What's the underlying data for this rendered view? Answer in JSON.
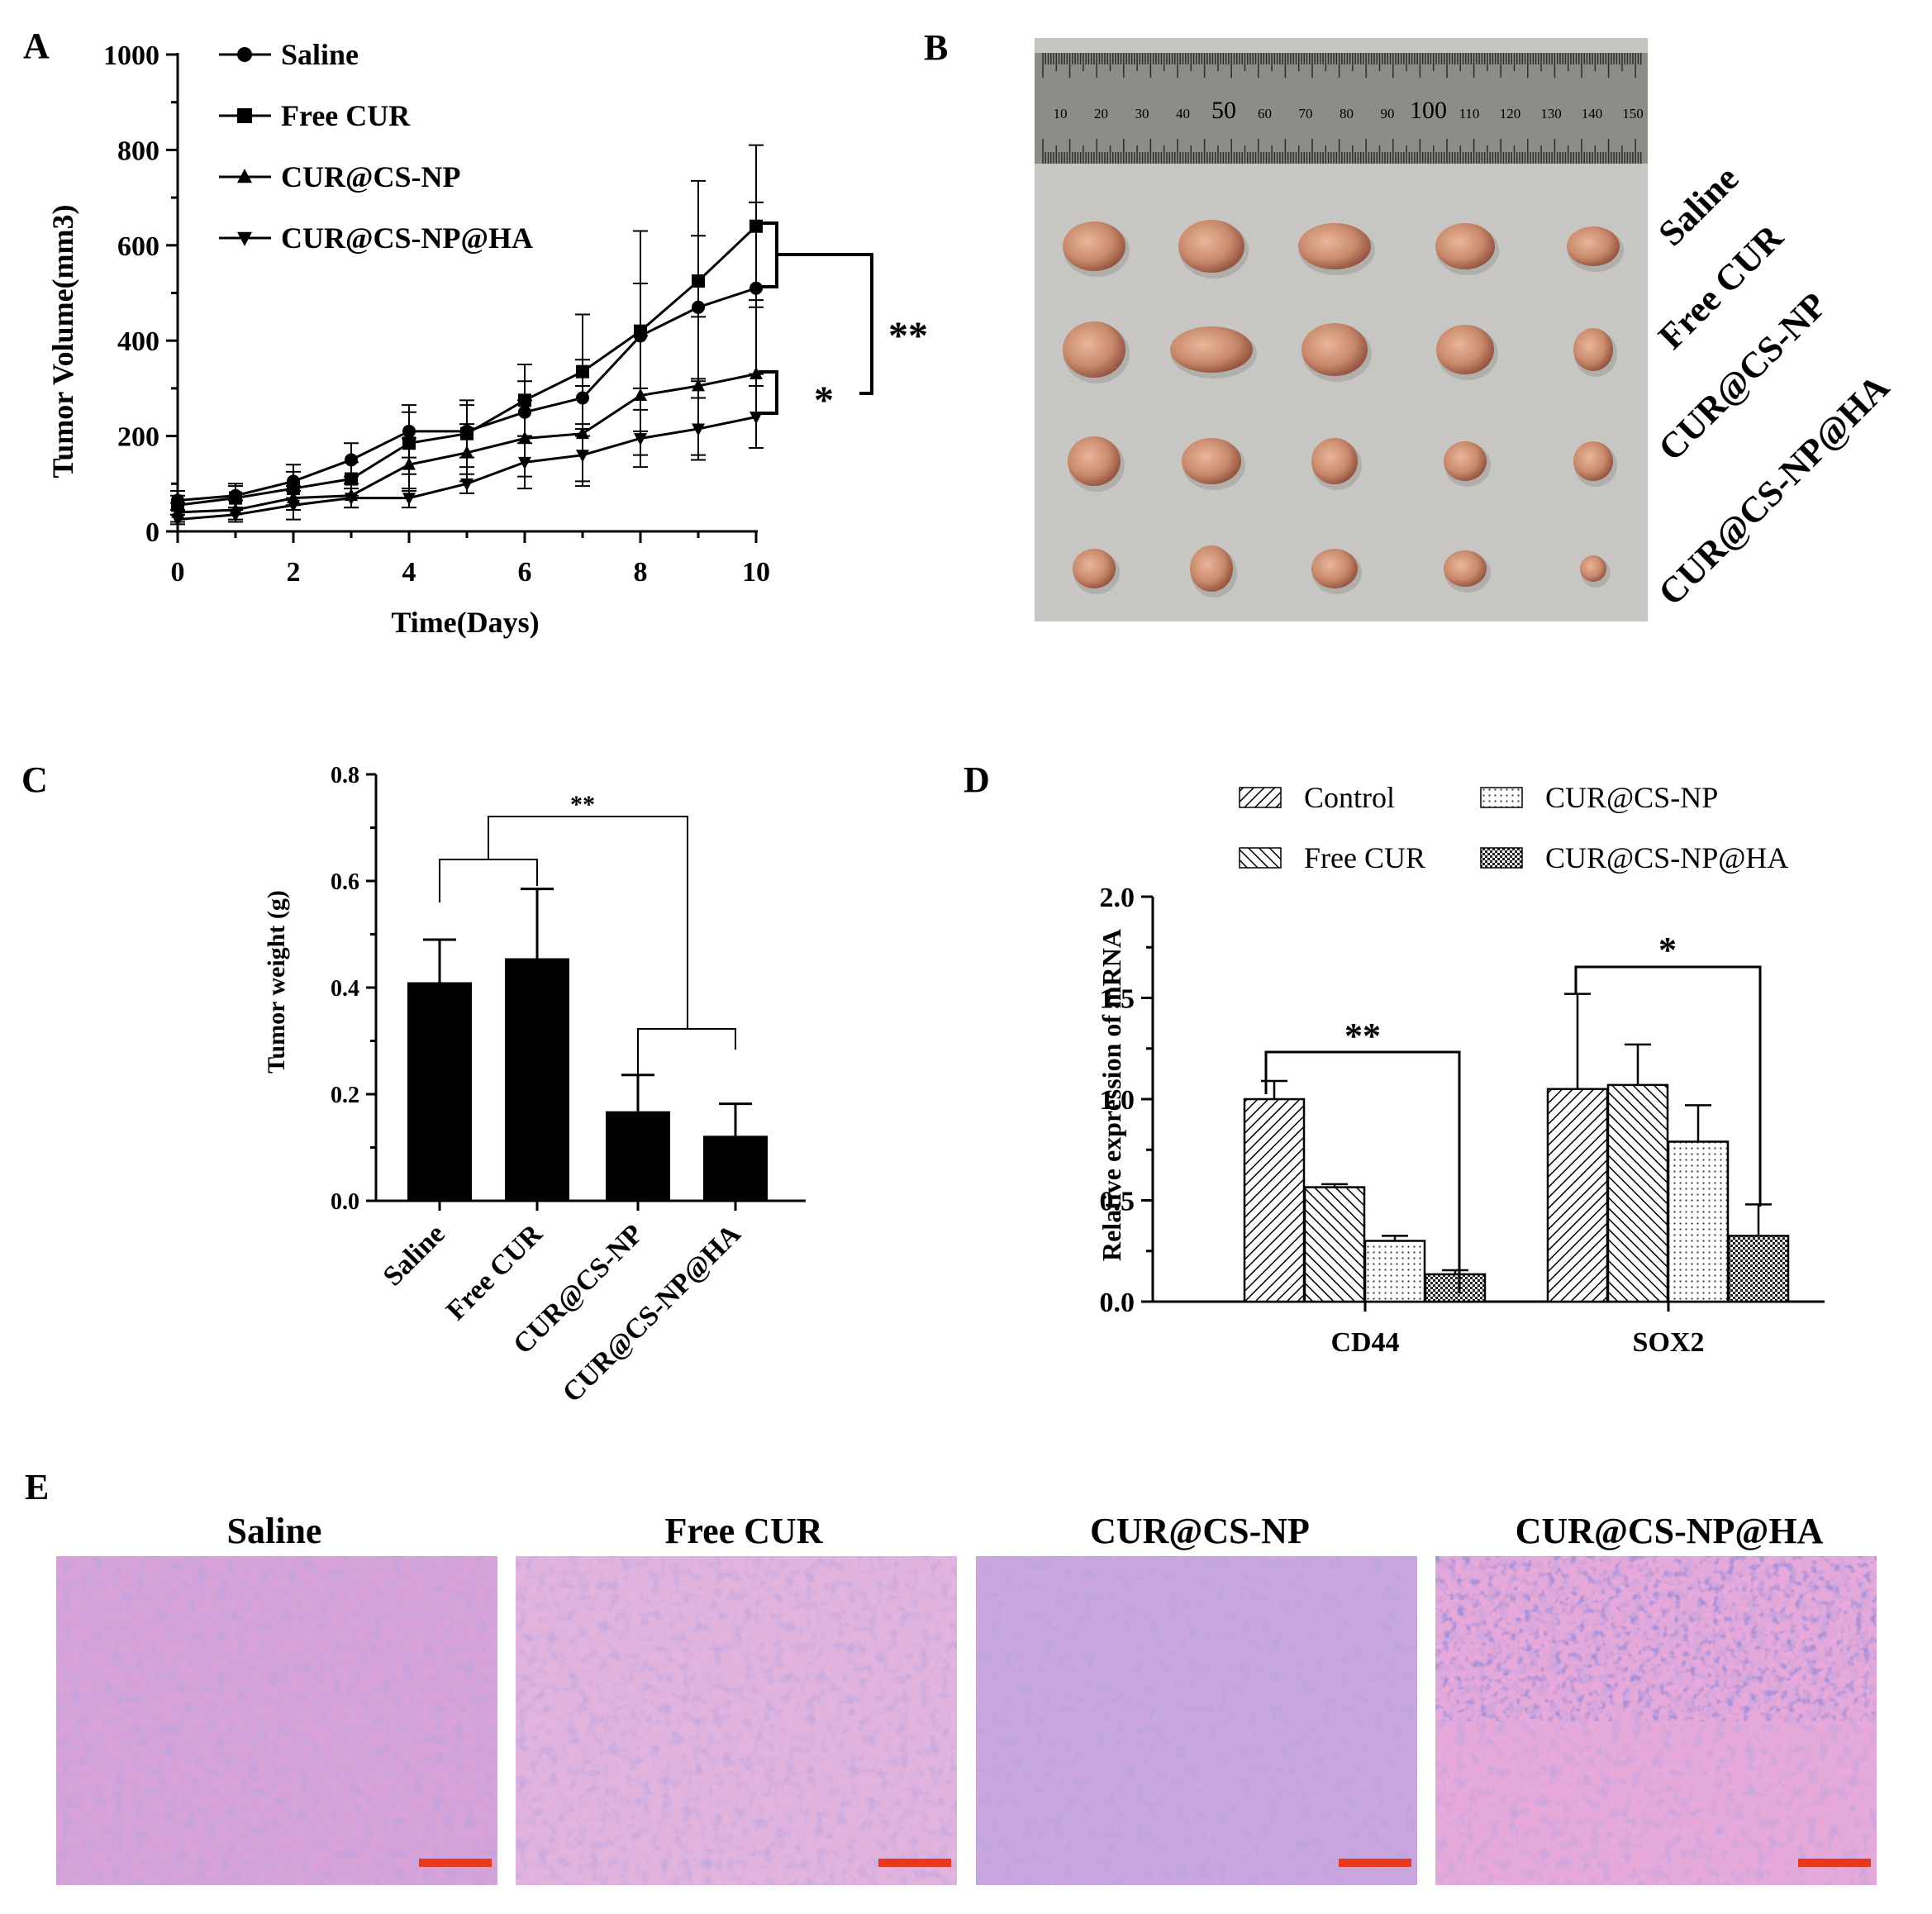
{
  "panel_letters": [
    "A",
    "B",
    "C",
    "D",
    "E"
  ],
  "panel_b": {
    "ruler_numbers": [
      "10",
      "20",
      "30",
      "40",
      "50",
      "60",
      "70",
      "80",
      "90",
      "100",
      "110",
      "120",
      "130",
      "140",
      "150"
    ],
    "row_labels": [
      "Saline",
      "Free CUR",
      "CUR@CS-NP",
      "CUR@CS-NP@HA"
    ]
  },
  "panel_e": {
    "titles": [
      "Saline",
      "Free CUR",
      "CUR@CS-NP",
      "CUR@CS-NP@HA"
    ]
  },
  "chart_data": [
    {
      "panel": "A",
      "type": "line",
      "xlabel": "Time(Days)",
      "ylabel": "Tumor Volume(mm3)",
      "xlim": [
        0,
        10
      ],
      "ylim": [
        0,
        1000
      ],
      "xticks": [
        0,
        2,
        4,
        6,
        8,
        10
      ],
      "yticks": [
        0,
        200,
        400,
        600,
        800,
        1000
      ],
      "x": [
        0,
        1,
        2,
        3,
        4,
        5,
        6,
        7,
        8,
        9,
        10
      ],
      "legend_position": "top-left",
      "series": [
        {
          "name": "Saline",
          "marker": "circle",
          "values": [
            65,
            75,
            105,
            150,
            210,
            210,
            250,
            280,
            410,
            470,
            510
          ],
          "errors": [
            20,
            25,
            35,
            35,
            55,
            55,
            65,
            80,
            110,
            150,
            180
          ]
        },
        {
          "name": "Free CUR",
          "marker": "square",
          "values": [
            55,
            70,
            90,
            110,
            185,
            205,
            275,
            335,
            420,
            525,
            640
          ],
          "errors": [
            20,
            25,
            35,
            35,
            65,
            70,
            75,
            120,
            210,
            210,
            170
          ]
        },
        {
          "name": "CUR@CS-NP",
          "marker": "triangle-up",
          "values": [
            40,
            45,
            70,
            75,
            140,
            165,
            195,
            205,
            285,
            305,
            330
          ],
          "errors": [
            20,
            20,
            25,
            25,
            55,
            60,
            80,
            100,
            125,
            145,
            155
          ]
        },
        {
          "name": "CUR@CS-NP@HA",
          "marker": "triangle-down",
          "values": [
            25,
            35,
            55,
            70,
            70,
            100,
            145,
            160,
            195,
            215,
            240
          ],
          "errors": [
            10,
            15,
            30,
            20,
            20,
            20,
            55,
            65,
            60,
            65,
            65
          ]
        }
      ],
      "annotations": [
        "**",
        "*"
      ]
    },
    {
      "panel": "C",
      "type": "bar",
      "ylabel": "Tumor weight  (g)",
      "categories": [
        "Saline",
        "Free CUR",
        "CUR@CS-NP",
        "CUR@CS-NP@HA"
      ],
      "values": [
        0.41,
        0.455,
        0.168,
        0.122
      ],
      "errors": [
        0.08,
        0.13,
        0.068,
        0.06
      ],
      "ylim": [
        0,
        0.8
      ],
      "yticks": [
        "0.0",
        "0.2",
        "0.4",
        "0.6",
        "0.8"
      ],
      "annotations": [
        "**"
      ]
    },
    {
      "panel": "D",
      "type": "bar",
      "ylabel": "Relative expression of mRNA",
      "categories": [
        "CD44",
        "SOX2"
      ],
      "ylim": [
        0,
        2.0
      ],
      "yticks": [
        "0.0",
        "0.5",
        "1.0",
        "1.5",
        "2.0"
      ],
      "legend_position": "top",
      "series": [
        {
          "name": "Control",
          "pattern": "diag-fwd",
          "values": [
            1.0,
            1.05
          ],
          "errors": [
            0.09,
            0.47
          ]
        },
        {
          "name": "Free CUR",
          "pattern": "diag-back",
          "values": [
            0.565,
            1.07
          ],
          "errors": [
            0.015,
            0.2
          ]
        },
        {
          "name": "CUR@CS-NP",
          "pattern": "dots",
          "values": [
            0.3,
            0.79
          ],
          "errors": [
            0.025,
            0.18
          ]
        },
        {
          "name": "CUR@CS-NP@HA",
          "pattern": "checker",
          "values": [
            0.135,
            0.325
          ],
          "errors": [
            0.02,
            0.155
          ]
        }
      ],
      "annotations": [
        "**",
        "*"
      ]
    }
  ],
  "colors": {
    "scale_bar": "#e8391f",
    "ruler_highlight": "#c00000",
    "photo_background": "#c9c8c5",
    "ruler": "#8d8c86",
    "tumor": "#c98a6c",
    "he_stain_pink": "#d9a2d6",
    "he_stain_purple": "#7a5fc0"
  }
}
